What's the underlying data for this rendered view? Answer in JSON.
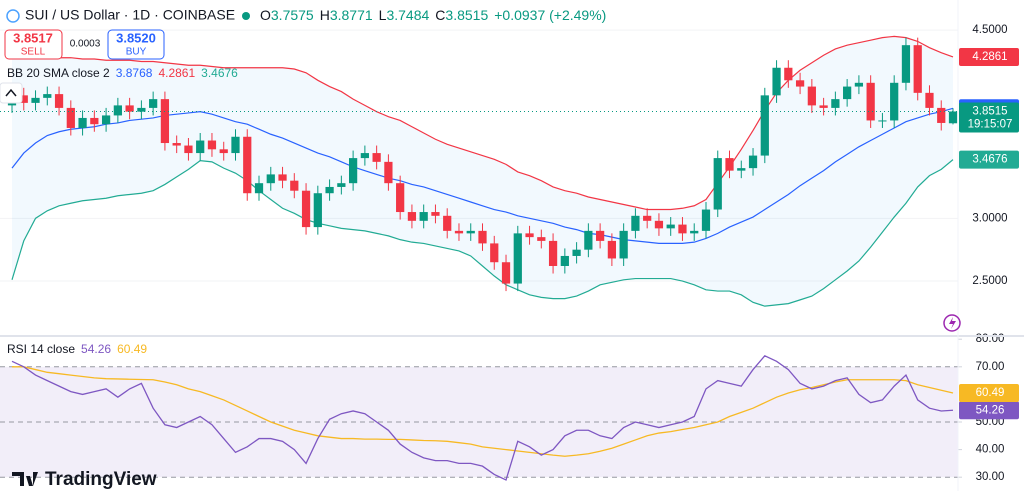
{
  "chart_data": [
    {
      "type": "candlestick",
      "title": "SUI / US Dollar · 1D · COINBASE",
      "ohlc_header": [
        {
          "label": "O",
          "value": 3.7575
        },
        {
          "label": "H",
          "value": 3.8771
        },
        {
          "label": "L",
          "value": 3.7484
        },
        {
          "label": "C",
          "value": 3.8515
        }
      ],
      "change": "+0.0937 (+2.49%)",
      "trade": {
        "sell_price": "3.8517",
        "sell": "SELL",
        "spread": "0.0003",
        "buy_price": "3.8520",
        "buy": "BUY"
      },
      "indicator": "BB 20 SMA close 2",
      "countdown": "19:15:07",
      "up_color": "#089981",
      "down_color": "#f23645",
      "ylim": [
        2.07,
        4.74
      ],
      "yticks": [
        {
          "value": 2.5,
          "label": "2.5000"
        },
        {
          "value": 3.0,
          "label": "3.0000"
        },
        {
          "value": 4.5,
          "label": "4.5000"
        }
      ],
      "grid": true,
      "open": [
        3.9,
        3.98,
        3.92,
        3.96,
        3.99,
        3.88,
        3.72,
        3.8,
        3.75,
        3.82,
        3.9,
        3.85,
        3.88,
        3.95,
        3.6,
        3.58,
        3.52,
        3.62,
        3.55,
        3.52,
        3.65,
        3.2,
        3.28,
        3.35,
        3.3,
        3.22,
        2.93,
        3.2,
        3.25,
        3.28,
        3.48,
        3.52,
        3.45,
        3.28,
        3.05,
        2.98,
        3.05,
        3.02,
        2.9,
        2.88,
        2.9,
        2.8,
        2.65,
        2.48,
        2.88,
        2.85,
        2.82,
        2.62,
        2.7,
        2.75,
        2.9,
        2.82,
        2.68,
        2.9,
        3.02,
        2.98,
        2.92,
        2.95,
        2.88,
        2.9,
        3.07,
        3.48,
        3.38,
        3.4,
        3.5,
        3.98,
        4.2,
        4.1,
        4.05,
        3.9,
        3.88,
        3.95,
        4.05,
        4.08,
        3.78,
        3.78,
        4.08,
        4.38,
        4.0,
        3.88,
        3.7575
      ],
      "high": [
        4.04,
        4.04,
        4.02,
        4.05,
        4.05,
        3.94,
        3.86,
        3.86,
        3.88,
        3.96,
        3.96,
        3.94,
        4.01,
        4.01,
        3.66,
        3.64,
        3.68,
        3.68,
        3.61,
        3.71,
        3.71,
        3.34,
        3.41,
        3.41,
        3.36,
        3.28,
        3.26,
        3.31,
        3.34,
        3.54,
        3.58,
        3.58,
        3.51,
        3.34,
        3.11,
        3.11,
        3.11,
        3.08,
        2.96,
        2.96,
        2.96,
        2.86,
        2.71,
        2.94,
        2.94,
        2.91,
        2.88,
        2.76,
        2.81,
        2.96,
        2.96,
        2.88,
        2.96,
        3.08,
        3.08,
        3.04,
        3.01,
        3.01,
        2.96,
        3.13,
        3.54,
        3.54,
        3.46,
        3.56,
        4.04,
        4.26,
        4.26,
        4.16,
        4.11,
        3.96,
        4.01,
        4.11,
        4.14,
        4.14,
        3.84,
        4.14,
        4.44,
        4.44,
        4.06,
        3.94,
        3.8771
      ],
      "low": [
        3.84,
        3.86,
        3.86,
        3.9,
        3.82,
        3.66,
        3.66,
        3.69,
        3.69,
        3.76,
        3.79,
        3.79,
        3.82,
        3.54,
        3.52,
        3.46,
        3.46,
        3.49,
        3.46,
        3.46,
        3.14,
        3.14,
        3.22,
        3.24,
        3.16,
        2.87,
        2.87,
        3.14,
        3.19,
        3.22,
        3.42,
        3.39,
        3.22,
        2.99,
        2.92,
        2.92,
        2.96,
        2.84,
        2.82,
        2.82,
        2.74,
        2.59,
        2.42,
        2.42,
        2.79,
        2.76,
        2.56,
        2.56,
        2.64,
        2.69,
        2.76,
        2.62,
        2.62,
        2.84,
        2.92,
        2.86,
        2.86,
        2.82,
        2.82,
        2.84,
        3.01,
        3.32,
        3.32,
        3.34,
        3.44,
        3.92,
        4.04,
        3.99,
        3.84,
        3.82,
        3.82,
        3.89,
        3.99,
        3.72,
        3.72,
        3.72,
        4.02,
        3.94,
        3.82,
        3.7,
        3.7484
      ],
      "close": [
        3.98,
        3.92,
        3.96,
        3.99,
        3.88,
        3.72,
        3.8,
        3.75,
        3.82,
        3.9,
        3.85,
        3.88,
        3.95,
        3.6,
        3.58,
        3.52,
        3.62,
        3.55,
        3.52,
        3.65,
        3.2,
        3.28,
        3.35,
        3.3,
        3.22,
        2.93,
        3.2,
        3.25,
        3.28,
        3.48,
        3.52,
        3.45,
        3.28,
        3.05,
        2.98,
        3.05,
        3.02,
        2.9,
        2.88,
        2.9,
        2.8,
        2.65,
        2.48,
        2.88,
        2.85,
        2.82,
        2.62,
        2.7,
        2.75,
        2.9,
        2.82,
        2.68,
        2.9,
        3.02,
        2.98,
        2.92,
        2.95,
        2.88,
        2.9,
        3.07,
        3.48,
        3.38,
        3.4,
        3.5,
        3.98,
        4.2,
        4.1,
        4.05,
        3.9,
        3.88,
        3.95,
        4.05,
        4.08,
        3.78,
        3.78,
        4.08,
        4.38,
        4.0,
        3.88,
        3.76,
        3.8515
      ],
      "series": [
        {
          "color": "#2962ff",
          "values": [
            3.4,
            3.52,
            3.6,
            3.66,
            3.69,
            3.71,
            3.72,
            3.73,
            3.75,
            3.76,
            3.78,
            3.79,
            3.8,
            3.82,
            3.83,
            3.84,
            3.85,
            3.83,
            3.8,
            3.77,
            3.75,
            3.71,
            3.67,
            3.64,
            3.6,
            3.56,
            3.52,
            3.49,
            3.45,
            3.41,
            3.38,
            3.35,
            3.32,
            3.3,
            3.27,
            3.25,
            3.22,
            3.19,
            3.16,
            3.13,
            3.1,
            3.07,
            3.05,
            3.02,
            3.0,
            2.98,
            2.96,
            2.93,
            2.91,
            2.88,
            2.87,
            2.85,
            2.83,
            2.82,
            2.81,
            2.8,
            2.8,
            2.8,
            2.81,
            2.84,
            2.88,
            2.93,
            2.97,
            3.01,
            3.07,
            3.13,
            3.19,
            3.26,
            3.32,
            3.38,
            3.45,
            3.51,
            3.57,
            3.62,
            3.67,
            3.72,
            3.77,
            3.8,
            3.83,
            3.85,
            3.8768
          ]
        },
        {
          "color": "#f23645",
          "values": [
            4.29,
            4.29,
            4.29,
            4.28,
            4.28,
            4.28,
            4.27,
            4.27,
            4.26,
            4.26,
            4.26,
            4.25,
            4.25,
            4.24,
            4.23,
            4.22,
            4.22,
            4.21,
            4.2,
            4.2,
            4.2,
            4.2,
            4.2,
            4.2,
            4.19,
            4.16,
            4.1,
            4.05,
            4.01,
            3.95,
            3.9,
            3.85,
            3.81,
            3.78,
            3.73,
            3.68,
            3.63,
            3.59,
            3.56,
            3.53,
            3.5,
            3.47,
            3.43,
            3.37,
            3.34,
            3.3,
            3.25,
            3.22,
            3.2,
            3.17,
            3.15,
            3.13,
            3.11,
            3.09,
            3.07,
            3.07,
            3.07,
            3.08,
            3.1,
            3.15,
            3.28,
            3.41,
            3.55,
            3.7,
            3.86,
            4.0,
            4.1,
            4.18,
            4.24,
            4.3,
            4.35,
            4.38,
            4.4,
            4.42,
            4.44,
            4.45,
            4.44,
            4.41,
            4.36,
            4.32,
            4.2861
          ]
        },
        {
          "color": "#22ab94",
          "values": [
            2.51,
            2.82,
            3.0,
            3.06,
            3.1,
            3.12,
            3.14,
            3.15,
            3.16,
            3.18,
            3.19,
            3.2,
            3.22,
            3.27,
            3.33,
            3.39,
            3.46,
            3.45,
            3.4,
            3.36,
            3.3,
            3.22,
            3.15,
            3.08,
            3.04,
            2.99,
            2.96,
            2.94,
            2.92,
            2.91,
            2.9,
            2.88,
            2.86,
            2.83,
            2.81,
            2.8,
            2.78,
            2.76,
            2.74,
            2.7,
            2.62,
            2.54,
            2.47,
            2.43,
            2.39,
            2.37,
            2.36,
            2.36,
            2.38,
            2.42,
            2.47,
            2.49,
            2.51,
            2.52,
            2.52,
            2.52,
            2.52,
            2.5,
            2.47,
            2.43,
            2.42,
            2.42,
            2.39,
            2.33,
            2.3,
            2.31,
            2.32,
            2.35,
            2.38,
            2.44,
            2.51,
            2.58,
            2.66,
            2.77,
            2.89,
            3.01,
            3.12,
            3.25,
            3.34,
            3.39,
            3.4676
          ]
        }
      ],
      "band_fill": "#2196f3"
    },
    {
      "type": "line",
      "title": "RSI 14 close",
      "ylim": [
        25,
        80.8
      ],
      "yticks": [
        {
          "value": 30,
          "label": "30.00"
        },
        {
          "value": 40,
          "label": "40.00"
        },
        {
          "value": 50,
          "label": "50.00"
        },
        {
          "value": 70,
          "label": "70.00"
        },
        {
          "value": 80,
          "label": "80.00"
        }
      ],
      "levels": [
        30,
        50,
        70
      ],
      "band_fill": "#7e57c2",
      "series": [
        {
          "color": "#7e57c2",
          "values": [
            72,
            70,
            67,
            65,
            63,
            61,
            60,
            61,
            62,
            59,
            62,
            64,
            55,
            49,
            48,
            50,
            52,
            49,
            44,
            39,
            41,
            44,
            44,
            43,
            40,
            35,
            44,
            51,
            53,
            54,
            53,
            50,
            47,
            42,
            39,
            37,
            36,
            36,
            35,
            35,
            34,
            31,
            29,
            43,
            41,
            38,
            40,
            45,
            47,
            47,
            45,
            44,
            48,
            50,
            49,
            48,
            49,
            50,
            52,
            62,
            65,
            64,
            63,
            69,
            74,
            72,
            69,
            64,
            62,
            63,
            65,
            66,
            60,
            57,
            58,
            63,
            67,
            58,
            55,
            54,
            54.26
          ]
        },
        {
          "color": "#f7b924",
          "values": [
            70,
            70,
            69,
            68,
            67.5,
            67,
            66.5,
            66,
            65.7,
            65.6,
            65.5,
            65.4,
            65.3,
            64.5,
            63.5,
            62,
            61,
            59.5,
            58,
            56,
            54,
            52,
            50,
            48.5,
            47,
            46,
            45,
            44.5,
            44,
            44,
            43.8,
            43.8,
            43.7,
            43.7,
            43.5,
            43.3,
            43.2,
            43,
            42.5,
            42,
            41,
            40.5,
            40,
            39.5,
            39,
            38.5,
            38,
            37.6,
            38,
            38.5,
            39.4,
            40.5,
            42,
            43.5,
            45,
            46,
            46.5,
            47.3,
            48,
            49,
            50,
            52,
            53.5,
            55,
            57,
            59,
            60.5,
            61.7,
            62.5,
            63.5,
            64.5,
            65.3,
            65.3,
            65.3,
            65.3,
            65.3,
            65,
            63.5,
            62.5,
            61.5,
            60.49
          ]
        }
      ]
    }
  ],
  "logo": "TradingView"
}
